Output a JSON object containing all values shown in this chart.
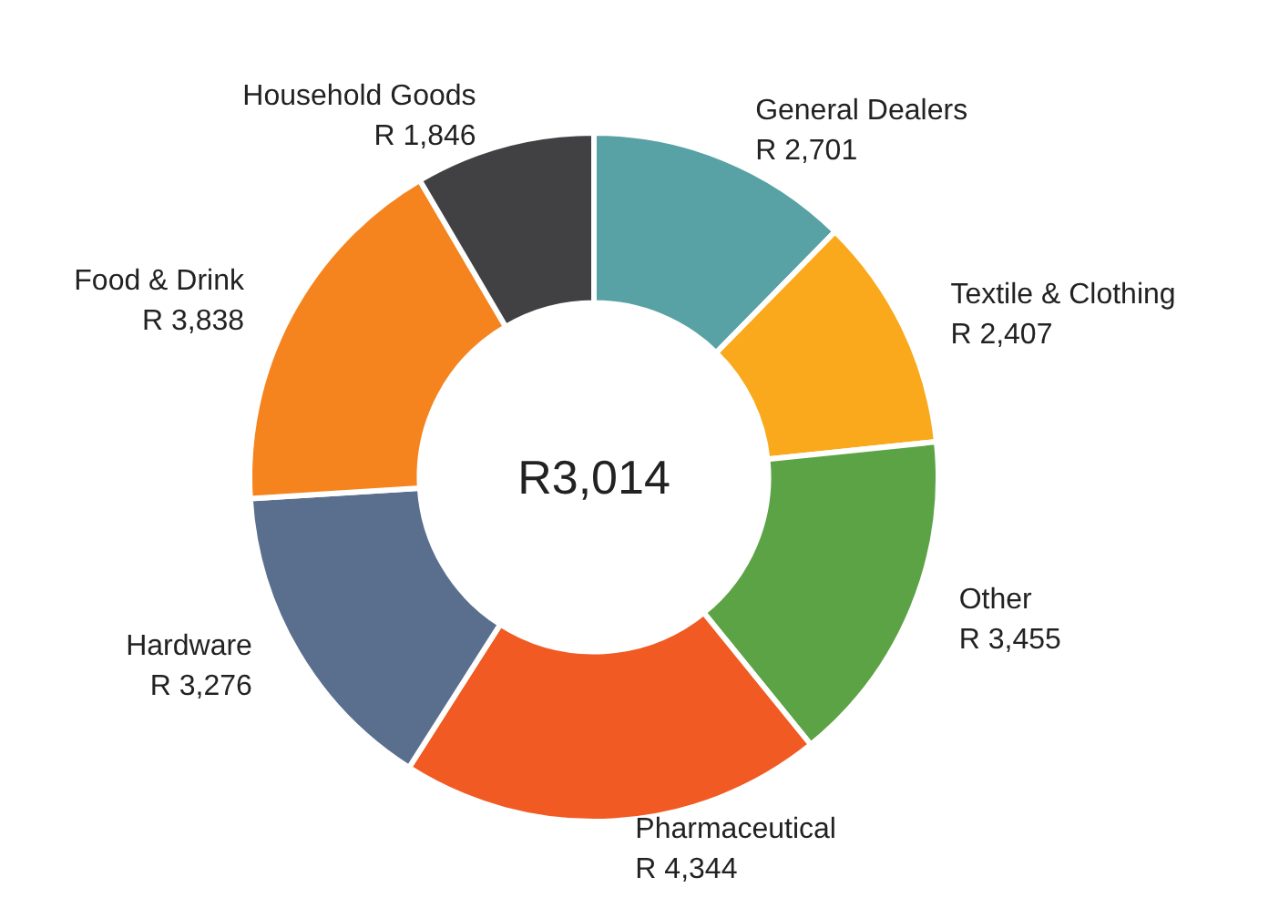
{
  "chart_data": {
    "type": "donut",
    "categories": [
      "General Dealers",
      "Textile & Clothing",
      "Other",
      "Pharmaceutical",
      "Hardware",
      "Food & Drink",
      "Household Goods"
    ],
    "values": [
      2701,
      2407,
      3455,
      4344,
      3276,
      3838,
      1846
    ],
    "value_labels": [
      "R 2,701",
      "R 2,407",
      "R 3,455",
      "R 4,344",
      "R 3,276",
      "R 3,838",
      "R 1,846"
    ],
    "colors": [
      "#58a1a5",
      "#f9a91b",
      "#5ca346",
      "#f15a22",
      "#5a6e8e",
      "#f5841f",
      "#414042"
    ],
    "annotations": [
      "R3,014"
    ],
    "legend": false
  }
}
